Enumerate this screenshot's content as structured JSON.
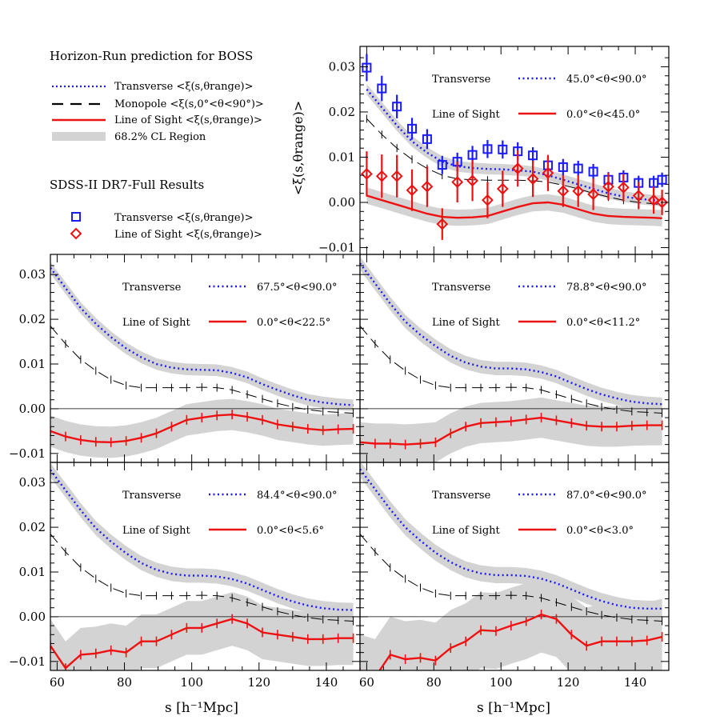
{
  "legend_block": {
    "heading_prediction": "Horizon-Run prediction for BOSS",
    "heading_observed": "SDSS-II DR7-Full Results",
    "pred_entries": [
      {
        "label": "Transverse <ξ(s,θrange)>",
        "style": "dotted",
        "color": "#1a1aff"
      },
      {
        "label": "Monopole   <ξ(s,0°<θ<90°)>",
        "style": "dash",
        "color": "#000000"
      },
      {
        "label": "Line of Sight <ξ(s,θrange)>",
        "style": "solid",
        "color": "#ee1111"
      },
      {
        "label": "68.2% CL Region",
        "style": "band",
        "color": "#d3d3d3"
      }
    ],
    "obs_entries": [
      {
        "label": "Transverse <ξ(s,θrange)>",
        "marker": "square",
        "color": "#1a1aff"
      },
      {
        "label": "Line of Sight <ξ(s,θrange)>",
        "marker": "diamond",
        "color": "#ee1111"
      }
    ]
  },
  "axis_text": {
    "ylabel": "<ξ(s,θrange)>",
    "xlabel": "s [h⁻¹Mpc]"
  },
  "colors": {
    "transverse": "#1a1aff",
    "los": "#ee1111",
    "band": "#d3d3d3",
    "monopole": "#000000"
  },
  "chart_data": [
    {
      "type": "line",
      "panel": "top-right",
      "xlim": [
        58,
        150
      ],
      "ylim": [
        -0.0115,
        0.0345
      ],
      "xticks": [
        60,
        80,
        100,
        120,
        140
      ],
      "yticks": [
        -0.01,
        0.0,
        0.01,
        0.02,
        0.03
      ],
      "ytick_labels": [
        "−0.01",
        "0.00",
        "0.01",
        "0.02",
        "0.03"
      ],
      "show_ytick_labels": true,
      "show_xtick_labels": false,
      "zero_line": false,
      "legend_transverse": "Transverse",
      "legend_los": "Line of Sight",
      "range_transverse": "45.0°<θ<90.0°",
      "range_los": "0.0°<θ<45.0°",
      "x": [
        60,
        64.5,
        69,
        73.5,
        78,
        82.5,
        87,
        91.5,
        96,
        100.5,
        105,
        109.5,
        114,
        118.5,
        123,
        127.5,
        132,
        136.5,
        141,
        145.5,
        148
      ],
      "series": [
        {
          "name": "Transverse",
          "values": [
            0.025,
            0.021,
            0.017,
            0.0135,
            0.011,
            0.009,
            0.008,
            0.0076,
            0.0074,
            0.0073,
            0.0071,
            0.0068,
            0.006,
            0.005,
            0.004,
            0.003,
            0.002,
            0.0013,
            0.0008,
            0.0005,
            0.0003
          ],
          "band": 0.0012
        },
        {
          "name": "Monopole",
          "values": [
            0.0185,
            0.015,
            0.012,
            0.0095,
            0.0075,
            0.006,
            0.0052,
            0.005,
            0.0049,
            0.0049,
            0.0049,
            0.0048,
            0.0045,
            0.0038,
            0.003,
            0.002,
            0.0012,
            0.0005,
            0.0,
            -0.0003,
            -0.0005
          ]
        },
        {
          "name": "Line of Sight",
          "values": [
            0.0015,
            0.0005,
            -0.0005,
            -0.0015,
            -0.0025,
            -0.0032,
            -0.0034,
            -0.0033,
            -0.003,
            -0.002,
            -0.001,
            -0.0002,
            0.0,
            -0.0005,
            -0.0015,
            -0.0025,
            -0.003,
            -0.0032,
            -0.0033,
            -0.0034,
            -0.0035
          ],
          "band": 0.0018
        }
      ],
      "observed": [
        {
          "name": "Transverse",
          "marker": "square",
          "x": [
            60,
            64.5,
            69,
            73.5,
            78,
            82.5,
            87,
            91.5,
            96,
            100.5,
            105,
            109.5,
            114,
            118.5,
            123,
            127.5,
            132,
            136.5,
            141,
            145.5,
            148
          ],
          "values": [
            0.0298,
            0.0252,
            0.0212,
            0.0163,
            0.014,
            0.0083,
            0.009,
            0.0105,
            0.0118,
            0.0117,
            0.0113,
            0.0104,
            0.0082,
            0.0078,
            0.0075,
            0.0068,
            0.005,
            0.0055,
            0.0043,
            0.0043,
            0.005
          ],
          "errors": [
            0.003,
            0.0028,
            0.0026,
            0.0024,
            0.0022,
            0.002,
            0.002,
            0.002,
            0.002,
            0.002,
            0.002,
            0.0018,
            0.0018,
            0.0018,
            0.0017,
            0.0017,
            0.0017,
            0.0016,
            0.0016,
            0.0016,
            0.0016
          ]
        },
        {
          "name": "Line of Sight",
          "marker": "diamond",
          "x": [
            60,
            64.5,
            69,
            73.5,
            78,
            82.5,
            87,
            91.5,
            96,
            100.5,
            105,
            109.5,
            114,
            118.5,
            123,
            127.5,
            132,
            136.5,
            141,
            145.5,
            148
          ],
          "values": [
            0.0063,
            0.0058,
            0.0058,
            0.0027,
            0.0035,
            -0.0048,
            0.0045,
            0.0048,
            0.0005,
            0.003,
            0.0075,
            0.0052,
            0.0065,
            0.0025,
            0.0025,
            0.0018,
            0.0035,
            0.0033,
            0.0015,
            0.0005,
            0.0
          ],
          "errors": [
            0.005,
            0.0048,
            0.0047,
            0.0046,
            0.0045,
            0.0035,
            0.0045,
            0.0045,
            0.004,
            0.004,
            0.004,
            0.004,
            0.004,
            0.0035,
            0.0035,
            0.0035,
            0.003,
            0.003,
            0.003,
            0.003,
            0.0028
          ]
        }
      ]
    },
    {
      "type": "line",
      "panel": "middle-left",
      "xlim": [
        58,
        150
      ],
      "ylim": [
        -0.012,
        0.0345
      ],
      "xticks": [
        60,
        80,
        100,
        120,
        140
      ],
      "yticks": [
        -0.01,
        0.0,
        0.01,
        0.02,
        0.03
      ],
      "ytick_labels": [
        "−0.01",
        "0.00",
        "0.01",
        "0.02",
        "0.03"
      ],
      "show_ytick_labels": true,
      "show_xtick_labels": false,
      "zero_line": true,
      "legend_transverse": "Transverse",
      "legend_los": "Line of Sight",
      "range_transverse": "67.5°<θ<90.0°",
      "range_los": "0.0°<θ<22.5°",
      "x": [
        58,
        62.5,
        67,
        71.5,
        76,
        80.5,
        85,
        89.5,
        94,
        98.5,
        103,
        107.5,
        112,
        116.5,
        121,
        125.5,
        130,
        134.5,
        139,
        143.5,
        148
      ],
      "series": [
        {
          "name": "Transverse",
          "values": [
            0.0315,
            0.027,
            0.0225,
            0.019,
            0.016,
            0.0135,
            0.0115,
            0.01,
            0.0092,
            0.0088,
            0.0087,
            0.0086,
            0.008,
            0.007,
            0.0055,
            0.0042,
            0.003,
            0.002,
            0.0014,
            0.001,
            0.0008
          ],
          "band": 0.0013
        },
        {
          "name": "Monopole",
          "values": [
            0.0185,
            0.0145,
            0.011,
            0.0085,
            0.0065,
            0.0052,
            0.0047,
            0.0047,
            0.0047,
            0.0047,
            0.0048,
            0.0047,
            0.0042,
            0.0032,
            0.0022,
            0.0012,
            0.0004,
            -0.0002,
            -0.0006,
            -0.0008,
            -0.001
          ]
        },
        {
          "name": "Line of Sight",
          "values": [
            -0.005,
            -0.0062,
            -0.007,
            -0.0074,
            -0.0075,
            -0.0072,
            -0.0065,
            -0.0055,
            -0.004,
            -0.0025,
            -0.002,
            -0.0015,
            -0.0013,
            -0.0018,
            -0.0025,
            -0.0035,
            -0.004,
            -0.0045,
            -0.0048,
            -0.0046,
            -0.0045
          ],
          "band": 0.0035
        }
      ]
    },
    {
      "type": "line",
      "panel": "middle-right",
      "xlim": [
        58,
        150
      ],
      "ylim": [
        -0.012,
        0.0345
      ],
      "xticks": [
        60,
        80,
        100,
        120,
        140
      ],
      "yticks": [
        -0.01,
        0.0,
        0.01,
        0.02,
        0.03
      ],
      "ytick_labels": [
        "−0.01",
        "0.00",
        "0.01",
        "0.02",
        "0.03"
      ],
      "show_ytick_labels": false,
      "show_xtick_labels": false,
      "zero_line": true,
      "legend_transverse": "Transverse",
      "legend_los": "Line of Sight",
      "range_transverse": "78.8°<θ<90.0°",
      "range_los": "0.0°<θ<11.2°",
      "x": [
        58,
        62.5,
        67,
        71.5,
        76,
        80.5,
        85,
        89.5,
        94,
        98.5,
        103,
        107.5,
        112,
        116.5,
        121,
        125.5,
        130,
        134.5,
        139,
        143.5,
        148
      ],
      "series": [
        {
          "name": "Transverse",
          "values": [
            0.0325,
            0.028,
            0.0235,
            0.0195,
            0.0165,
            0.014,
            0.0118,
            0.0103,
            0.0094,
            0.009,
            0.009,
            0.0088,
            0.0082,
            0.0072,
            0.0058,
            0.0044,
            0.0032,
            0.0023,
            0.0016,
            0.0012,
            0.001
          ],
          "band": 0.0015
        },
        {
          "name": "Monopole",
          "values": [
            0.0185,
            0.0145,
            0.011,
            0.0085,
            0.0065,
            0.0052,
            0.0047,
            0.0047,
            0.0047,
            0.0047,
            0.0048,
            0.0047,
            0.0042,
            0.0032,
            0.0022,
            0.0012,
            0.0004,
            -0.0002,
            -0.0006,
            -0.0008,
            -0.001
          ]
        },
        {
          "name": "Line of Sight",
          "values": [
            -0.0075,
            -0.0078,
            -0.0078,
            -0.008,
            -0.0078,
            -0.0075,
            -0.0055,
            -0.004,
            -0.0032,
            -0.003,
            -0.0028,
            -0.0024,
            -0.002,
            -0.0026,
            -0.0032,
            -0.0038,
            -0.004,
            -0.004,
            -0.0038,
            -0.0037,
            -0.0037
          ],
          "band": 0.0045
        }
      ]
    },
    {
      "type": "line",
      "panel": "bottom-left",
      "xlim": [
        58,
        150
      ],
      "ylim": [
        -0.012,
        0.0345
      ],
      "xticks": [
        60,
        80,
        100,
        120,
        140
      ],
      "yticks": [
        -0.01,
        0.0,
        0.01,
        0.02,
        0.03
      ],
      "ytick_labels": [
        "−0.01",
        "0.00",
        "0.01",
        "0.02",
        "0.03"
      ],
      "show_ytick_labels": true,
      "show_xtick_labels": true,
      "zero_line": true,
      "legend_transverse": "Transverse",
      "legend_los": "Line of Sight",
      "range_transverse": "84.4°<θ<90.0°",
      "range_los": "0.0°<θ<5.6°",
      "x": [
        58,
        62.5,
        67,
        71.5,
        76,
        80.5,
        85,
        89.5,
        94,
        98.5,
        103,
        107.5,
        112,
        116.5,
        121,
        125.5,
        130,
        134.5,
        139,
        143.5,
        148
      ],
      "series": [
        {
          "name": "Transverse",
          "values": [
            0.0328,
            0.0283,
            0.0238,
            0.0198,
            0.0168,
            0.0142,
            0.012,
            0.0105,
            0.0096,
            0.0092,
            0.0092,
            0.009,
            0.0084,
            0.0074,
            0.006,
            0.0046,
            0.0034,
            0.0025,
            0.0019,
            0.0016,
            0.0015
          ],
          "band": 0.0016
        },
        {
          "name": "Monopole",
          "values": [
            0.0185,
            0.0145,
            0.011,
            0.0085,
            0.0065,
            0.0052,
            0.0047,
            0.0047,
            0.0047,
            0.0047,
            0.0048,
            0.0047,
            0.0042,
            0.0032,
            0.0022,
            0.0012,
            0.0004,
            -0.0002,
            -0.0006,
            -0.0008,
            -0.001
          ]
        },
        {
          "name": "Line of Sight",
          "values": [
            -0.0065,
            -0.0115,
            -0.0085,
            -0.0082,
            -0.0075,
            -0.008,
            -0.0055,
            -0.0055,
            -0.004,
            -0.0025,
            -0.0025,
            -0.0015,
            -0.0005,
            -0.0015,
            -0.0035,
            -0.004,
            -0.0045,
            -0.005,
            -0.005,
            -0.0048,
            -0.0048
          ],
          "band": 0.006
        }
      ]
    },
    {
      "type": "line",
      "panel": "bottom-right",
      "xlim": [
        58,
        150
      ],
      "ylim": [
        -0.012,
        0.0345
      ],
      "xticks": [
        60,
        80,
        100,
        120,
        140
      ],
      "yticks": [
        -0.01,
        0.0,
        0.01,
        0.02,
        0.03
      ],
      "ytick_labels": [
        "−0.01",
        "0.00",
        "0.01",
        "0.02",
        "0.03"
      ],
      "show_ytick_labels": false,
      "show_xtick_labels": true,
      "zero_line": true,
      "legend_transverse": "Transverse",
      "legend_los": "Line of Sight",
      "range_transverse": "87.0°<θ<90.0°",
      "range_los": "0.0°<θ<3.0°",
      "x": [
        58,
        62.5,
        67,
        71.5,
        76,
        80.5,
        85,
        89.5,
        94,
        98.5,
        103,
        107.5,
        112,
        116.5,
        121,
        125.5,
        130,
        134.5,
        139,
        143.5,
        148
      ],
      "series": [
        {
          "name": "Transverse",
          "values": [
            0.033,
            0.0285,
            0.024,
            0.02,
            0.017,
            0.0143,
            0.0122,
            0.0106,
            0.0097,
            0.0093,
            0.0093,
            0.0091,
            0.0085,
            0.0075,
            0.0061,
            0.0047,
            0.0035,
            0.0026,
            0.002,
            0.0018,
            0.0018
          ],
          "band": 0.0018
        },
        {
          "name": "Monopole",
          "values": [
            0.0185,
            0.0145,
            0.011,
            0.0085,
            0.0065,
            0.0052,
            0.0047,
            0.0047,
            0.0047,
            0.0047,
            0.0048,
            0.0047,
            0.0042,
            0.0032,
            0.0022,
            0.0012,
            0.0004,
            -0.0002,
            -0.0006,
            -0.0008,
            -0.001
          ]
        },
        {
          "name": "Line of Sight",
          "values": [
            -0.0125,
            -0.0135,
            -0.0085,
            -0.0095,
            -0.0092,
            -0.0098,
            -0.007,
            -0.0055,
            -0.003,
            -0.0032,
            -0.002,
            -0.001,
            0.0005,
            -0.0005,
            -0.004,
            -0.0065,
            -0.0055,
            -0.0055,
            -0.0055,
            -0.0053,
            -0.0045
          ],
          "band": 0.0085
        }
      ]
    }
  ]
}
